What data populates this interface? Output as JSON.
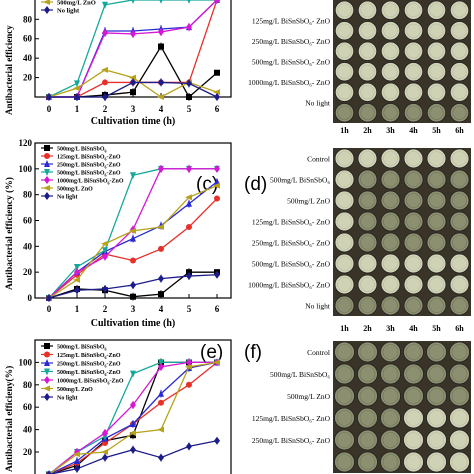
{
  "chart_data": [
    {
      "type": "line",
      "panel": "a",
      "xlabel": "Cultivation time (h)",
      "ylabel": "Antibacterial efficiency",
      "x": [
        0,
        1,
        2,
        3,
        4,
        5,
        6
      ],
      "ylim": [
        0,
        100
      ],
      "yticks_shown": [
        20,
        40,
        60,
        80
      ],
      "legend_visible": [
        "500mg/L ZnO",
        "No light"
      ],
      "series": [
        {
          "name": "",
          "color": "#000000",
          "marker": "square",
          "values": [
            0,
            0,
            2,
            5,
            52,
            0,
            25
          ]
        },
        {
          "name": "",
          "color": "#e8302a",
          "marker": "circle",
          "values": [
            0,
            0,
            15,
            15,
            15,
            15,
            100
          ]
        },
        {
          "name": "",
          "color": "#2a2ad4",
          "marker": "triangle",
          "values": [
            0,
            0,
            68,
            68,
            70,
            72,
            100
          ]
        },
        {
          "name": "",
          "color": "#14a89a",
          "marker": "tri-down",
          "values": [
            0,
            14,
            95,
            100,
            100,
            100,
            100
          ]
        },
        {
          "name": "",
          "color": "#d418d4",
          "marker": "diamond",
          "values": [
            0,
            0,
            66,
            65,
            67,
            72,
            100
          ]
        },
        {
          "name": "500mg/L ZnO",
          "color": "#b8a21a",
          "marker": "tri-left",
          "values": [
            0,
            9,
            28,
            20,
            0,
            15,
            5
          ]
        },
        {
          "name": "No light",
          "color": "#1c1c8a",
          "marker": "diamond",
          "values": [
            0,
            0,
            0,
            15,
            15,
            14,
            0
          ]
        }
      ]
    },
    {
      "type": "line",
      "panel": "c",
      "xlabel": "Cultivation time (h)",
      "ylabel": "Antibacterial efficiency (%)",
      "x": [
        0,
        1,
        2,
        3,
        4,
        5,
        6
      ],
      "ylim": [
        0,
        120
      ],
      "series": [
        {
          "name": "500mg/L BiSnSbO6",
          "color": "#000000",
          "marker": "square",
          "values": [
            0,
            7,
            6,
            1,
            3,
            20,
            20
          ]
        },
        {
          "name": "125mg/L BiSnSbO6-ZnO",
          "color": "#e8302a",
          "marker": "circle",
          "values": [
            0,
            18,
            34,
            29,
            38,
            55,
            77
          ]
        },
        {
          "name": "250mg/L BiSnSbO6-ZnO",
          "color": "#2a2ad4",
          "marker": "triangle",
          "values": [
            0,
            20,
            36,
            46,
            56,
            73,
            90
          ]
        },
        {
          "name": "500mg/L BiSnSbO6-ZnO",
          "color": "#14a89a",
          "marker": "tri-down",
          "values": [
            0,
            24,
            37,
            95,
            100,
            100,
            100
          ]
        },
        {
          "name": "1000mg/L BiSnSbO6-ZnO",
          "color": "#d418d4",
          "marker": "diamond",
          "values": [
            0,
            20,
            32,
            53,
            100,
            100,
            100
          ]
        },
        {
          "name": "500mg/L ZnO",
          "color": "#b8a21a",
          "marker": "tri-left",
          "values": [
            0,
            14,
            42,
            52,
            55,
            78,
            87
          ]
        },
        {
          "name": "No light",
          "color": "#1c1c8a",
          "marker": "diamond",
          "values": [
            0,
            6,
            7,
            10,
            15,
            17,
            18
          ]
        }
      ]
    },
    {
      "type": "line",
      "panel": "e",
      "ylabel": "Antibacterial efficieny(%)",
      "x": [
        0,
        1,
        2,
        3,
        4,
        5,
        6
      ],
      "ylim": [
        0,
        120
      ],
      "yticks_shown": [
        20,
        40,
        60,
        80,
        100
      ],
      "series": [
        {
          "name": "500mg/L BiSnSbO6",
          "color": "#000000",
          "marker": "square",
          "values": [
            0,
            8,
            30,
            35,
            100,
            100,
            100
          ]
        },
        {
          "name": "125mg/L BiSnSbO6-ZnO",
          "color": "#e8302a",
          "marker": "circle",
          "values": [
            0,
            10,
            28,
            45,
            64,
            80,
            100
          ]
        },
        {
          "name": "250mg/L BiSnSbO6-ZnO",
          "color": "#2a2ad4",
          "marker": "triangle",
          "values": [
            0,
            12,
            32,
            45,
            72,
            95,
            100
          ]
        },
        {
          "name": "500mg/L BiSnSbO6-ZnO",
          "color": "#14a89a",
          "marker": "tri-down",
          "values": [
            0,
            20,
            34,
            90,
            100,
            100,
            100
          ]
        },
        {
          "name": "1000mg/L BiSnSbO6-ZnO",
          "color": "#d418d4",
          "marker": "diamond",
          "values": [
            0,
            20,
            37,
            62,
            96,
            100,
            100
          ]
        },
        {
          "name": "500mg/L ZnO",
          "color": "#b8a21a",
          "marker": "tri-left",
          "values": [
            0,
            18,
            20,
            37,
            40,
            96,
            100
          ]
        },
        {
          "name": "No light",
          "color": "#1c1c8a",
          "marker": "diamond",
          "values": [
            0,
            5,
            15,
            22,
            15,
            25,
            30
          ]
        }
      ]
    }
  ],
  "panel_letters": {
    "c": "(c)",
    "d": "(d)",
    "e": "(e)",
    "f": "(f)"
  },
  "legend_a": [
    "500mg/L ZnO",
    "No light"
  ],
  "legend_c": [
    "500mg/L BiSnSbO",
    "125mg/L BiSnSbO -ZnO",
    "250mg/L BiSnSbO -ZnO",
    "500mg/L BiSnSbO -ZnO",
    "1000mg/L BiSnSbO -ZnO",
    "500mg/L ZnO",
    "No light"
  ],
  "legend_e": [
    "500mg/L BiSnSbO",
    "125mg/L BiSnSbO -ZnO",
    "250mg/L BiSnSbO -ZnO",
    "500mg/L BiSnSbO -ZnO",
    "1000mg/L BiSnSbO -ZnO",
    "500mg/L ZnO",
    "No light"
  ],
  "legend_subscript": "6",
  "plates_b": {
    "rows": [
      "125mg/L BiSnSbO₆- ZnO",
      "250mg/L BiSnSbO₆- ZnO",
      "500mg/L BiSnSbO₆- ZnO",
      "1000mg/L BiSnSbO₆- ZnO",
      "No light"
    ],
    "cols": [
      "1h",
      "2h",
      "3h",
      "4h",
      "5h",
      "6h"
    ]
  },
  "plates_d": {
    "rows": [
      "Control",
      "500mg/L BiSnSbO₆",
      "500mg/L ZnO",
      "125mg/L BiSnSbO₆- ZnO",
      "250mg/L BiSnSbO₆- ZnO",
      "500mg/L BiSnSbO₆- ZnO",
      "1000mg/L BiSnSbO₆- ZnO",
      "No light"
    ],
    "cols": [
      "1h",
      "2h",
      "3h",
      "4h",
      "5h",
      "6h"
    ]
  },
  "plates_f": {
    "rows": [
      "Control",
      "500mg/L BiSnSbO₆",
      "500mg/L ZnO",
      "125mg/L BiSnSbO₆- ZnO",
      "250mg/L BiSnSbO₆- ZnO"
    ]
  },
  "colors": {
    "plate_bg": "#3a3328",
    "agar_light": "#cfd2b4",
    "agar_dark": "#8c9070"
  }
}
